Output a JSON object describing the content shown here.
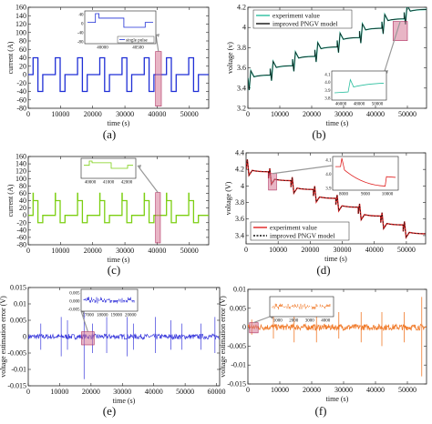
{
  "chart_data": [
    {
      "id": "a",
      "type": "line",
      "panel_label": "(a)",
      "xlabel": "time (s)",
      "ylabel": "current (A)",
      "xlim": [
        0,
        56000
      ],
      "ylim": [
        -80,
        160
      ],
      "xticks": [
        0,
        10000,
        20000,
        30000,
        40000,
        50000
      ],
      "yticks": [
        -80,
        -60,
        -40,
        -20,
        0,
        20,
        40,
        60,
        80,
        100,
        120,
        140,
        160
      ],
      "color": "#1f2fd6",
      "pulse": {
        "period": 6900,
        "first": 1500,
        "levels": [
          0,
          40,
          -40,
          0
        ],
        "spike": 40
      },
      "inset": {
        "xticks": [
          "40000",
          "40500"
        ],
        "yticks": [
          "40",
          "0",
          "-40",
          "-80"
        ],
        "legend": "single pulse"
      }
    },
    {
      "id": "b",
      "type": "line",
      "panel_label": "(b)",
      "xlabel": "time (s)",
      "ylabel": "voltage (v)",
      "xlim": [
        0,
        56000
      ],
      "ylim": [
        3.2,
        4.2
      ],
      "xticks": [
        0,
        10000,
        20000,
        30000,
        40000,
        50000
      ],
      "yticks": [
        3.2,
        3.4,
        3.6,
        3.8,
        4.0,
        4.2
      ],
      "series": [
        {
          "name": "experiment value",
          "color": "#2bbf9f"
        },
        {
          "name": "improved PNGV model",
          "color": "#111111"
        }
      ],
      "trend": {
        "start": 3.5,
        "end": 4.15
      },
      "inset": {
        "xticks": [
          "46000",
          "48000",
          "50000"
        ],
        "yticks": [
          "4.1",
          "4.0",
          "3.9",
          "3.8"
        ]
      }
    },
    {
      "id": "c",
      "type": "line",
      "panel_label": "(c)",
      "xlabel": "time (s)",
      "ylabel": "current (A)",
      "xlim": [
        0,
        56000
      ],
      "ylim": [
        -80,
        160
      ],
      "xticks": [
        0,
        10000,
        20000,
        30000,
        40000,
        50000
      ],
      "yticks": [
        -80,
        -60,
        -40,
        -20,
        0,
        20,
        40,
        60,
        80,
        100,
        120,
        140,
        160
      ],
      "color": "#7ccf12",
      "pulse": {
        "period": 6900,
        "first": 1500,
        "levels": [
          0,
          40,
          -20,
          0
        ],
        "spike": 60
      },
      "inset": {
        "xticks": [
          "40000",
          "41000",
          "42000"
        ],
        "yticks": []
      }
    },
    {
      "id": "d",
      "type": "line",
      "panel_label": "(d)",
      "xlabel": "time (s)",
      "ylabel": "voltage (V)",
      "xlim": [
        0,
        56000
      ],
      "ylim": [
        3.3,
        4.4
      ],
      "xticks": [
        0,
        10000,
        20000,
        30000,
        40000,
        50000
      ],
      "yticks": [
        3.4,
        3.6,
        3.8,
        4.0,
        4.2,
        4.4
      ],
      "series": [
        {
          "name": "experiment value",
          "color": "#e02020"
        },
        {
          "name": "improved PNGV model",
          "color": "#111111"
        }
      ],
      "trend": {
        "start": 4.2,
        "end": 3.45
      },
      "inset": {
        "xticks": [
          "8000",
          "9000",
          "10000"
        ],
        "yticks": [
          "4.1",
          "4.0",
          "3.9"
        ]
      }
    },
    {
      "id": "e",
      "type": "line",
      "panel_label": "(e)",
      "xlabel": "time (s)",
      "ylabel": "voltage estimation error (V)",
      "xlim": [
        0,
        61000
      ],
      "ylim": [
        -0.015,
        0.015
      ],
      "xticks": [
        0,
        10000,
        20000,
        30000,
        40000,
        50000,
        60000
      ],
      "yticks": [
        -0.015,
        -0.01,
        -0.005,
        0.0,
        0.005,
        0.01,
        0.015
      ],
      "color": "#3b3bdc",
      "inset": {
        "xticks": [
          "17000",
          "18000",
          "19000",
          "20000"
        ],
        "yticks": [
          "0.005",
          "0.000",
          "-0.005"
        ]
      }
    },
    {
      "id": "f",
      "type": "line",
      "panel_label": "(f)",
      "xlabel": "time (s)",
      "ylabel": "voltage estimation error (V)",
      "xlim": [
        0,
        56000
      ],
      "ylim": [
        -0.015,
        0.01
      ],
      "xticks": [
        0,
        10000,
        20000,
        30000,
        40000,
        50000
      ],
      "yticks": [
        -0.015,
        -0.01,
        -0.005,
        0.0,
        0.005,
        0.01
      ],
      "color": "#f07a2a",
      "inset": {
        "xticks": [
          "1000",
          "2000",
          "3000",
          "4000"
        ],
        "yticks": []
      }
    }
  ]
}
